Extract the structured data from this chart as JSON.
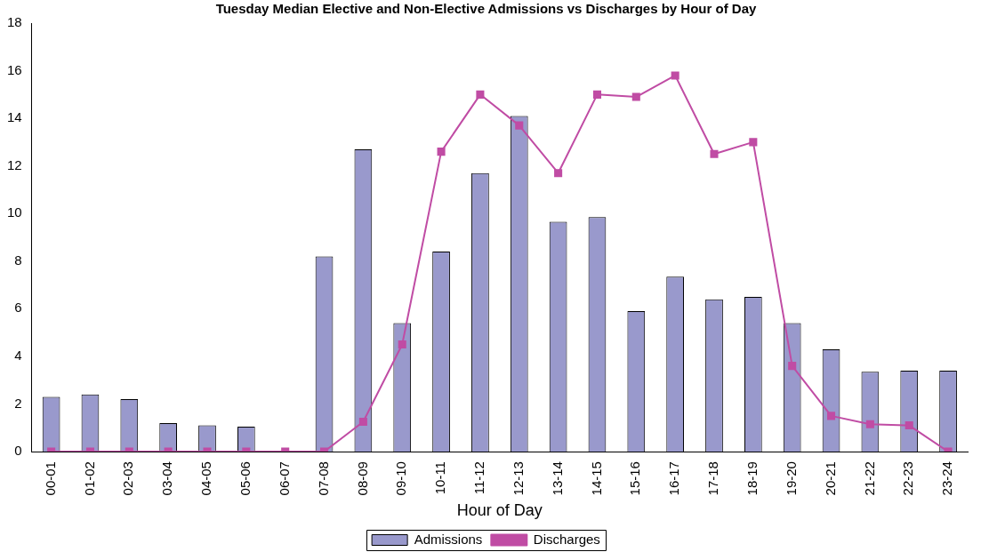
{
  "chart_data": {
    "type": "bar",
    "title": "Tuesday Median Elective and Non-Elective Admissions vs Discharges by Hour of Day",
    "xlabel": "Hour of Day",
    "categories": [
      "00-01",
      "01-02",
      "02-03",
      "03-04",
      "04-05",
      "05-06",
      "06-07",
      "07-08",
      "08-09",
      "09-10",
      "10-11",
      "11-12",
      "12-13",
      "13-14",
      "14-15",
      "15-16",
      "16-17",
      "17-18",
      "18-19",
      "19-20",
      "20-21",
      "21-22",
      "22-23",
      "23-24"
    ],
    "series": [
      {
        "name": "Admissions",
        "color": "#9999cc",
        "values": [
          2.3,
          2.4,
          2.2,
          1.2,
          1.1,
          1.05,
          0,
          8.2,
          12.7,
          5.4,
          8.4,
          11.7,
          14.1,
          9.65,
          9.85,
          5.9,
          7.35,
          6.4,
          6.5,
          5.4,
          4.3,
          3.35,
          3.4,
          3.4
        ]
      },
      {
        "name": "Discharges",
        "type": "line",
        "color": "#c04ca4",
        "marker": "square",
        "values": [
          0,
          0,
          0,
          0,
          0,
          0,
          0,
          0,
          1.25,
          4.5,
          12.6,
          15.0,
          13.7,
          11.7,
          15.0,
          14.9,
          15.8,
          12.5,
          13.0,
          3.6,
          1.5,
          1.15,
          1.1,
          0
        ]
      }
    ],
    "ylim": [
      0,
      18
    ],
    "yticks": [
      0,
      2,
      4,
      6,
      8,
      10,
      12,
      14,
      16,
      18
    ],
    "grid": false,
    "legend": "bottom"
  }
}
